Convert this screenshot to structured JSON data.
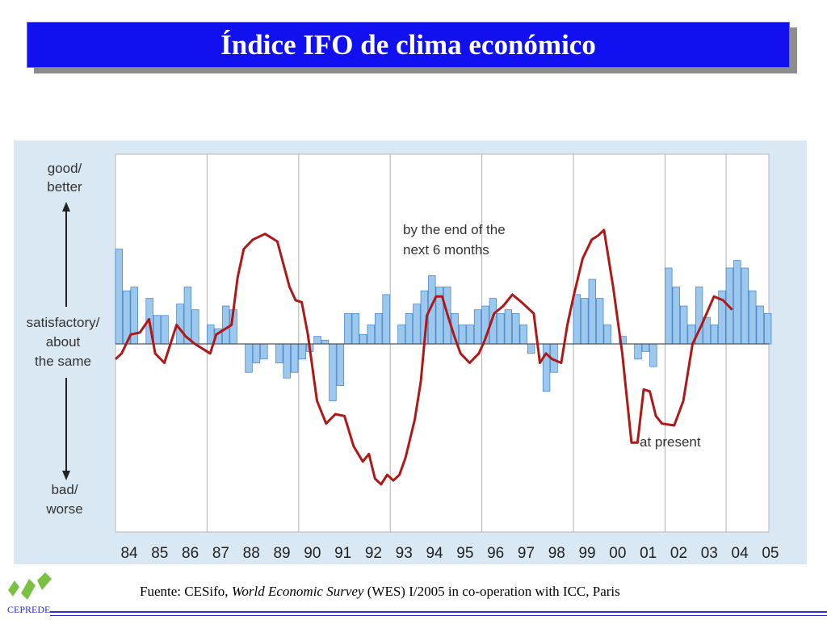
{
  "slide": {
    "title": "Índice IFO de clima económico",
    "source_prefix": "Fuente: CESifo, ",
    "source_italic": "World Economic Survey",
    "source_suffix": " (WES) I/2005 in co-operation with ICC, Paris",
    "logo_text": "CEPREDE",
    "colors": {
      "title_bg": "#1010f0",
      "chart_bg": "#d9e8f2",
      "bar_fill": "#9cc8ee",
      "bar_stroke": "#3f7fc4",
      "line": "#b01818",
      "footer_line": "#2b2bd6"
    }
  },
  "chart_data": {
    "type": "bar",
    "title": "",
    "xlabel": "",
    "ylabel": "",
    "y_axis_labels": {
      "top": [
        "good/",
        "better"
      ],
      "middle": [
        "satisfactory/",
        "about",
        "the same"
      ],
      "bottom": [
        "bad/",
        "worse"
      ]
    },
    "ylim": [
      -100,
      100
    ],
    "grid": "vertical lines at year boundaries",
    "x_range": [
      1984,
      2005.4
    ],
    "year_ticks": [
      "84",
      "85",
      "86",
      "87",
      "88",
      "89",
      "90",
      "91",
      "92",
      "93",
      "94",
      "95",
      "96",
      "97",
      "98",
      "99",
      "00",
      "01",
      "02",
      "03",
      "04",
      "05"
    ],
    "annotations": [
      {
        "text": "by the end of the next 6 months",
        "lines": [
          "by the end of the",
          "next 6 months"
        ]
      },
      {
        "text": "at present",
        "lines": [
          "at present"
        ]
      }
    ],
    "series": [
      {
        "name": "by the end of the next 6 months",
        "kind": "bar",
        "x_start": 1984.0,
        "x_step": 0.25,
        "values": [
          50,
          28,
          30,
          0,
          24,
          15,
          15,
          0,
          21,
          30,
          18,
          0,
          10,
          8,
          20,
          18,
          0,
          -15,
          -10,
          -8,
          0,
          -10,
          -18,
          -15,
          -8,
          -4,
          4,
          2,
          -30,
          -22,
          16,
          16,
          5,
          10,
          16,
          26,
          0,
          10,
          16,
          21,
          28,
          36,
          30,
          30,
          16,
          10,
          10,
          18,
          20,
          24,
          16,
          18,
          16,
          10,
          -5,
          0,
          -25,
          -15,
          0,
          0,
          26,
          24,
          34,
          24,
          10,
          0,
          4,
          0,
          -8,
          -4,
          -12,
          0,
          40,
          30,
          20,
          10,
          30,
          14,
          10,
          28,
          40,
          44,
          40,
          28,
          20,
          16,
          0,
          0
        ]
      },
      {
        "name": "at present",
        "kind": "line",
        "points": [
          [
            1984.0,
            -8
          ],
          [
            1984.2,
            -5
          ],
          [
            1984.5,
            5
          ],
          [
            1984.8,
            6
          ],
          [
            1985.1,
            13
          ],
          [
            1985.3,
            -5
          ],
          [
            1985.6,
            -10
          ],
          [
            1986.0,
            10
          ],
          [
            1986.3,
            4
          ],
          [
            1986.6,
            0
          ],
          [
            1987.1,
            -5
          ],
          [
            1987.3,
            5
          ],
          [
            1987.8,
            10
          ],
          [
            1988.0,
            35
          ],
          [
            1988.2,
            50
          ],
          [
            1988.5,
            55
          ],
          [
            1988.9,
            58
          ],
          [
            1989.1,
            56
          ],
          [
            1989.3,
            54
          ],
          [
            1989.7,
            30
          ],
          [
            1989.9,
            23
          ],
          [
            1990.1,
            22
          ],
          [
            1990.3,
            5
          ],
          [
            1990.6,
            -30
          ],
          [
            1990.9,
            -42
          ],
          [
            1991.2,
            -37
          ],
          [
            1991.5,
            -38
          ],
          [
            1991.8,
            -54
          ],
          [
            1992.1,
            -62
          ],
          [
            1992.3,
            -58
          ],
          [
            1992.5,
            -71
          ],
          [
            1992.7,
            -74
          ],
          [
            1992.9,
            -69
          ],
          [
            1993.1,
            -72
          ],
          [
            1993.3,
            -69
          ],
          [
            1993.5,
            -60
          ],
          [
            1993.8,
            -40
          ],
          [
            1994.0,
            -20
          ],
          [
            1994.2,
            15
          ],
          [
            1994.5,
            25
          ],
          [
            1994.7,
            25
          ],
          [
            1994.9,
            14
          ],
          [
            1995.1,
            4
          ],
          [
            1995.3,
            -5
          ],
          [
            1995.6,
            -10
          ],
          [
            1995.9,
            -5
          ],
          [
            1996.1,
            2
          ],
          [
            1996.4,
            16
          ],
          [
            1996.7,
            20
          ],
          [
            1997.0,
            26
          ],
          [
            1997.3,
            22
          ],
          [
            1997.7,
            16
          ],
          [
            1997.9,
            -10
          ],
          [
            1998.1,
            -5
          ],
          [
            1998.3,
            -8
          ],
          [
            1998.6,
            -10
          ],
          [
            1998.8,
            10
          ],
          [
            1999.0,
            25
          ],
          [
            1999.3,
            45
          ],
          [
            1999.6,
            55
          ],
          [
            1999.8,
            57
          ],
          [
            2000.0,
            60
          ],
          [
            2000.3,
            30
          ],
          [
            2000.6,
            -5
          ],
          [
            2000.9,
            -52
          ],
          [
            2001.1,
            -52
          ],
          [
            2001.3,
            -24
          ],
          [
            2001.5,
            -25
          ],
          [
            2001.7,
            -38
          ],
          [
            2001.9,
            -42
          ],
          [
            2002.3,
            -43
          ],
          [
            2002.6,
            -30
          ],
          [
            2002.9,
            0
          ],
          [
            2003.2,
            10
          ],
          [
            2003.6,
            25
          ],
          [
            2003.9,
            23
          ],
          [
            2004.2,
            18
          ]
        ]
      }
    ]
  }
}
